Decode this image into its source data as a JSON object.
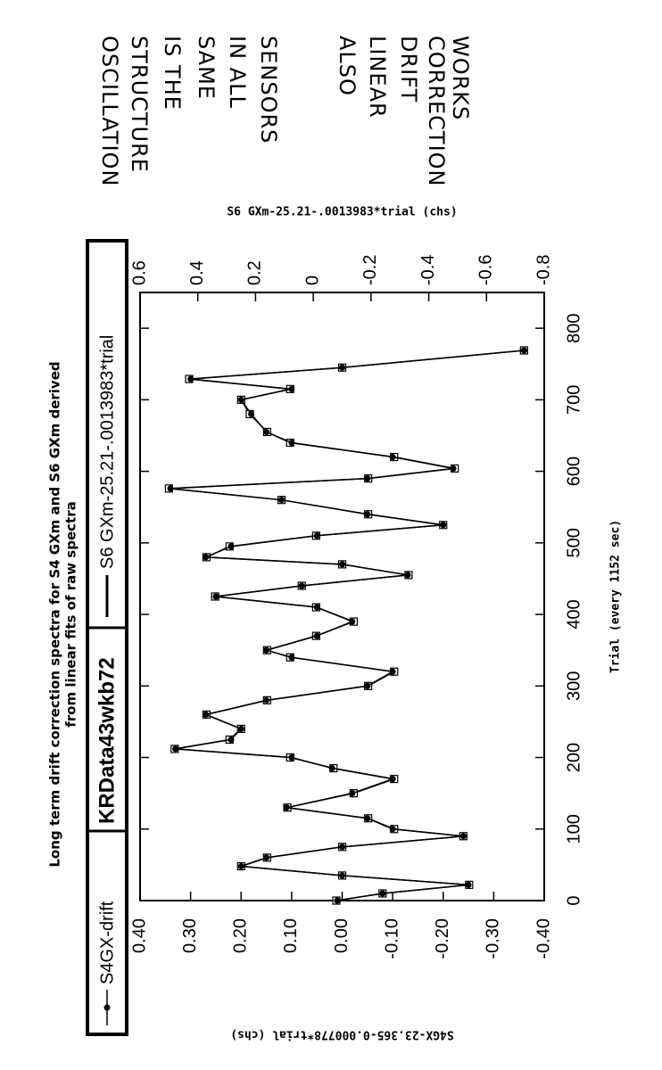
{
  "chart_data": {
    "type": "line",
    "title": [
      "Long term drift correction spectra for S4 GXm and S6 GXm derived",
      "from linear fits of raw spectra"
    ],
    "box_label": "KRData43wkb72",
    "xlabel": "Trial (every 1152 sec)",
    "ylabel": "S4GX-23.365-0.000778*trial (chs)",
    "y2label": "S6 GXm-25.21-.0013983*trial (chs)",
    "annotations": [
      [
        "OSCILLATION",
        "STRUCTURE",
        "IS THE",
        "SAME",
        "IN ALL",
        "SENSORS"
      ],
      [
        "ALSO",
        "LINEAR",
        "DRIFT",
        "CORRECTION",
        "WORKS"
      ]
    ],
    "x": [
      0,
      10,
      22,
      35,
      48,
      60,
      75,
      90,
      100,
      115,
      130,
      150,
      170,
      185,
      200,
      212,
      225,
      240,
      260,
      280,
      300,
      320,
      340,
      350,
      370,
      390,
      410,
      425,
      440,
      455,
      470,
      480,
      495,
      510,
      525,
      540,
      560,
      576,
      590,
      604,
      620,
      640,
      655,
      680,
      700,
      715,
      729,
      745,
      769
    ],
    "series": [
      {
        "name": "S4GX-drift",
        "color": "#000000",
        "marker": "circle",
        "values": [
          0.01,
          -0.08,
          -0.25,
          0.0,
          0.2,
          0.15,
          0.0,
          -0.24,
          -0.1,
          -0.05,
          0.11,
          -0.02,
          -0.1,
          0.02,
          0.1,
          0.33,
          0.22,
          0.2,
          0.27,
          0.15,
          -0.05,
          -0.1,
          0.1,
          0.15,
          0.05,
          -0.02,
          0.05,
          0.25,
          0.08,
          -0.13,
          0.0,
          0.27,
          0.22,
          0.05,
          -0.2,
          -0.05,
          0.12,
          0.34,
          -0.05,
          -0.22,
          -0.1,
          0.1,
          0.15,
          0.18,
          0.2,
          0.1,
          0.3,
          0.0,
          -0.36
        ]
      },
      {
        "name": "S6  GXm-25.21-.0013983*trial",
        "color": "#000000",
        "marker": "square",
        "axis": "y2",
        "values": [
          -0.08,
          -0.24,
          -0.54,
          -0.1,
          0.25,
          0.16,
          -0.1,
          -0.52,
          -0.28,
          -0.19,
          0.09,
          -0.14,
          -0.28,
          -0.07,
          0.08,
          0.48,
          0.29,
          0.25,
          0.37,
          0.16,
          -0.19,
          -0.28,
          0.08,
          0.16,
          -0.01,
          -0.14,
          -0.01,
          0.34,
          0.04,
          -0.33,
          -0.1,
          0.37,
          0.29,
          -0.01,
          -0.45,
          -0.19,
          0.11,
          0.5,
          -0.19,
          -0.49,
          -0.28,
          0.08,
          0.16,
          0.22,
          0.25,
          0.08,
          0.43,
          -0.1,
          -0.73
        ]
      }
    ],
    "xlim": [
      0,
      850
    ],
    "xticks": [
      0,
      100,
      200,
      300,
      400,
      500,
      600,
      700,
      800
    ],
    "ylim": [
      -0.4,
      0.4
    ],
    "yticks": [
      {
        "value": 0.4,
        "label": "0.40"
      },
      {
        "value": 0.3,
        "label": "0.30"
      },
      {
        "value": 0.2,
        "label": "0.20"
      },
      {
        "value": 0.1,
        "label": "0.10"
      },
      {
        "value": 0,
        "label": "0.00"
      },
      {
        "value": -0.1,
        "label": "-0.10"
      },
      {
        "value": -0.2,
        "label": "-0.20"
      },
      {
        "value": -0.3,
        "label": "-0.30"
      },
      {
        "value": -0.4,
        "label": "-0.40"
      }
    ],
    "y2lim": [
      -0.8,
      0.6
    ],
    "y2ticks": [
      0.6,
      0.4,
      0.2,
      0,
      -0.2,
      -0.4,
      -0.6,
      -0.8
    ]
  }
}
